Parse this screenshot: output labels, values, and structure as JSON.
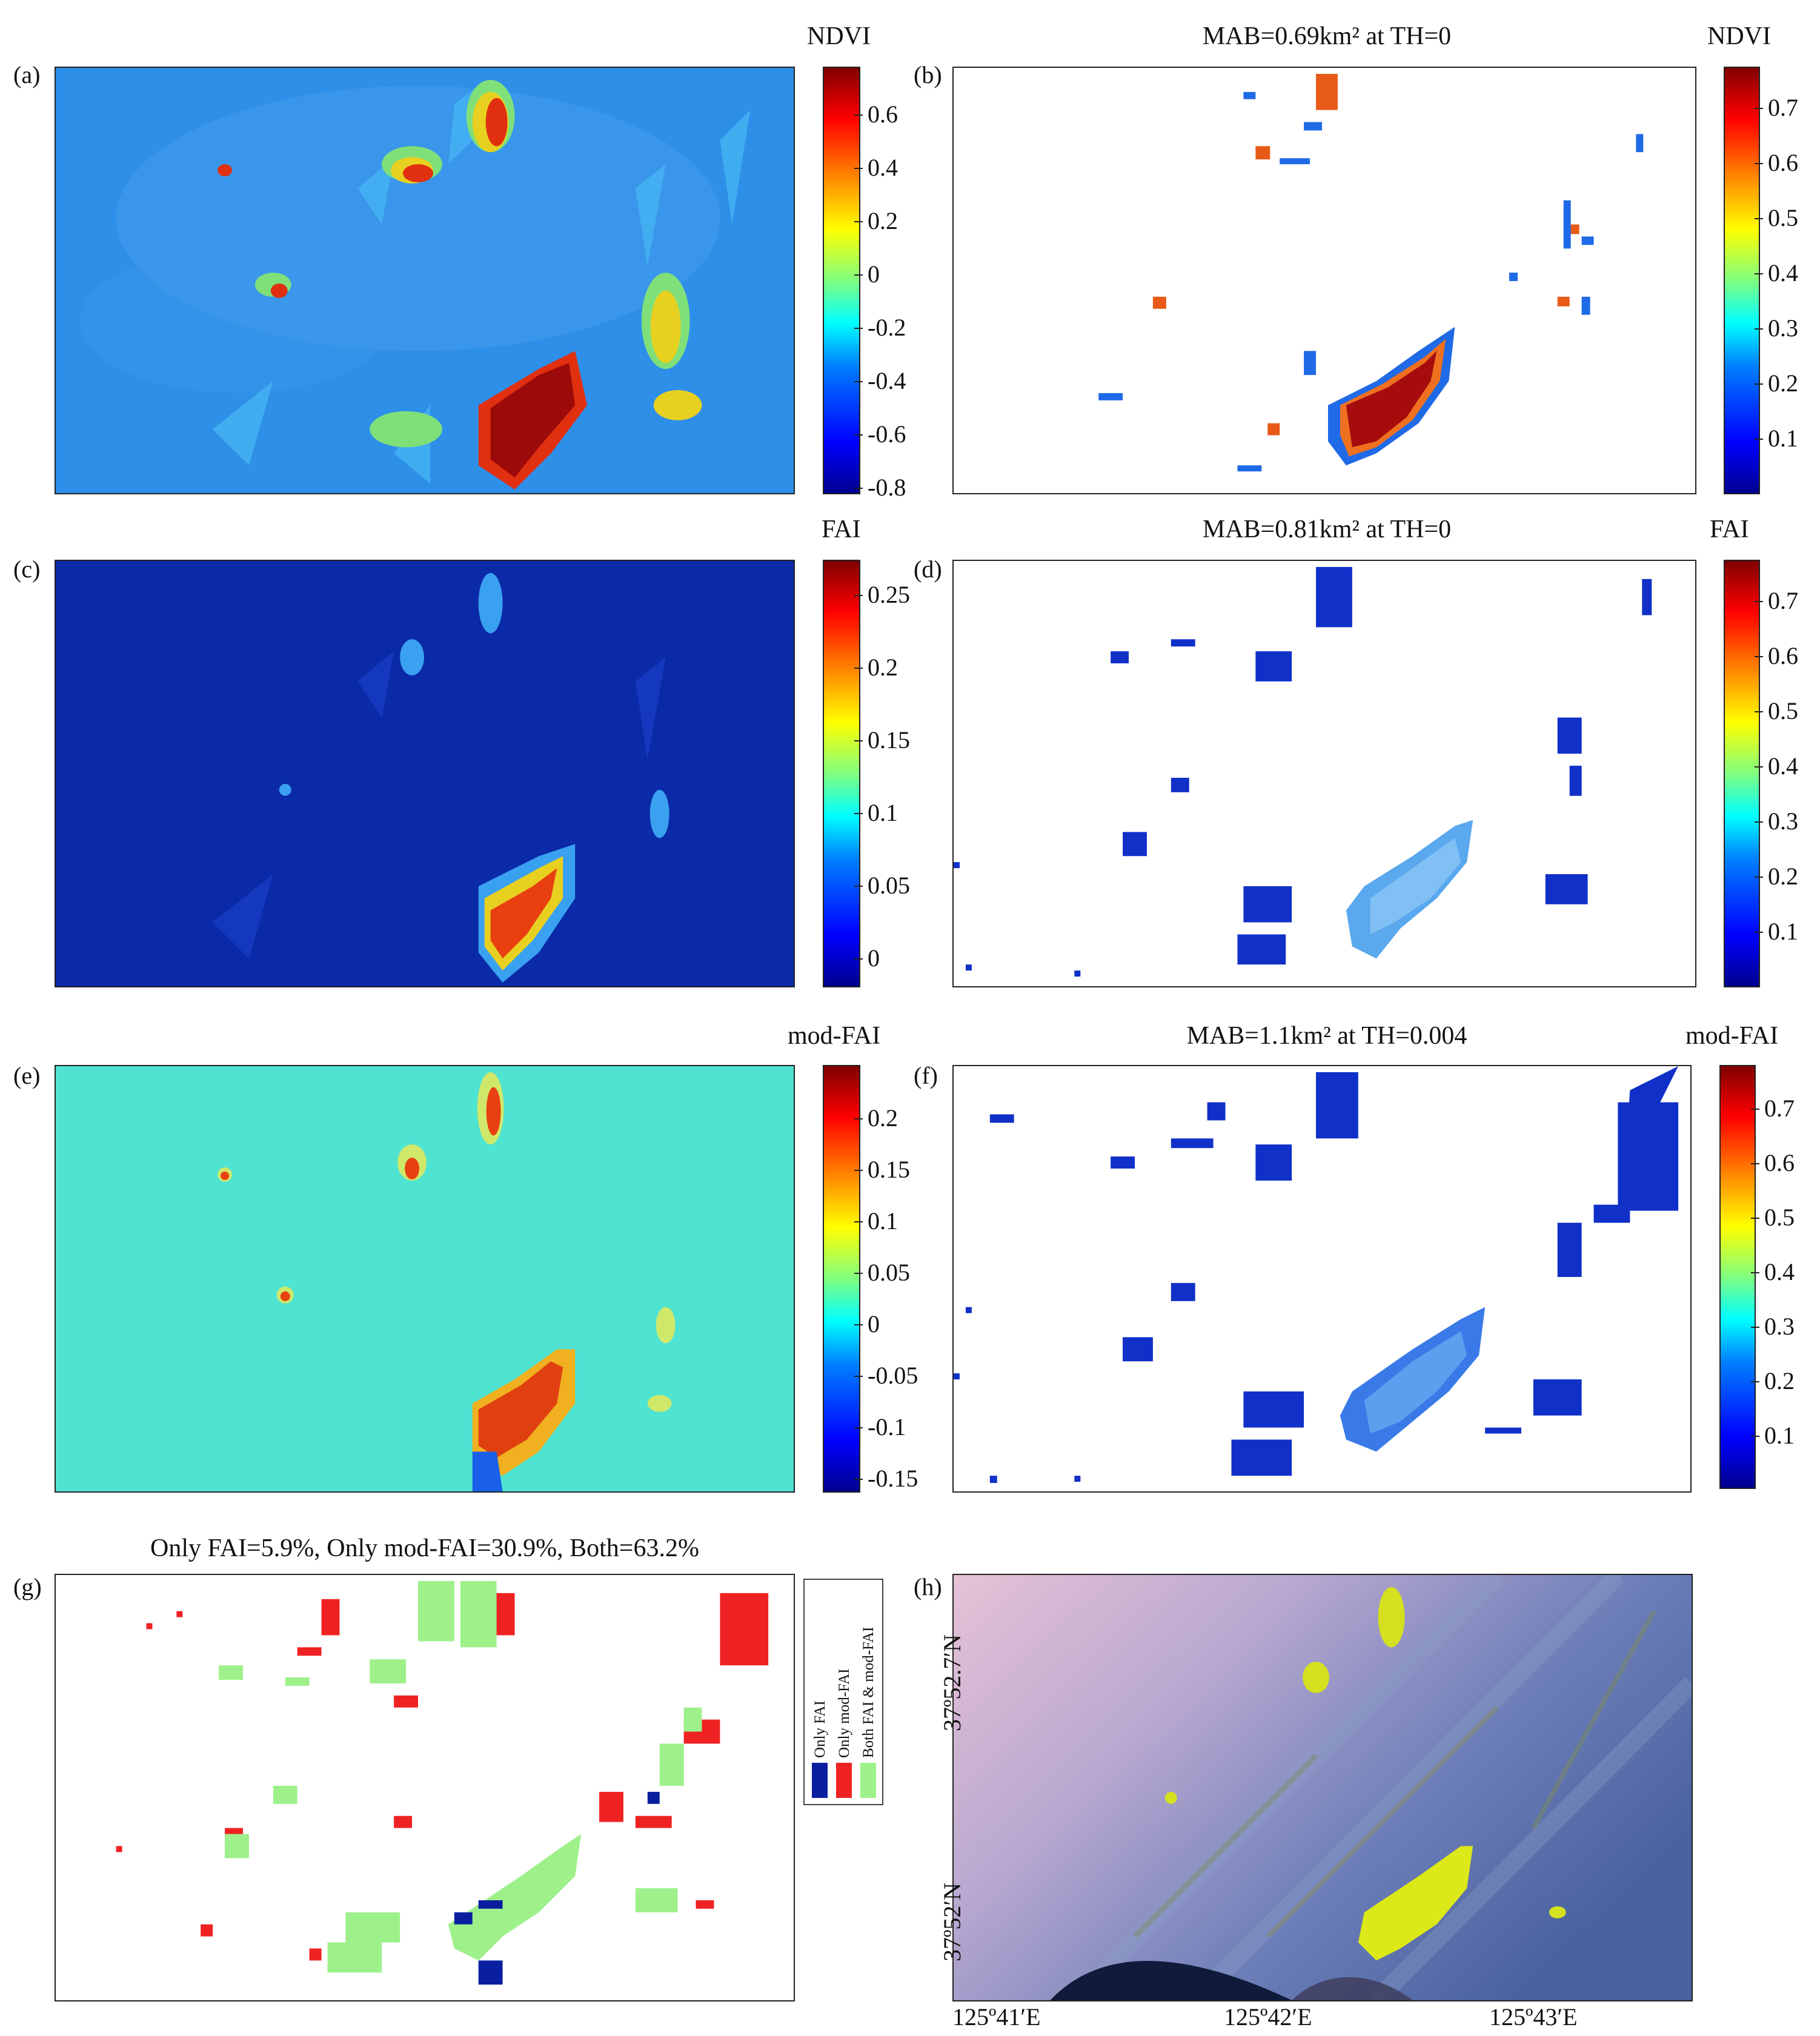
{
  "panels": {
    "a": {
      "label": "(a)",
      "colorbar_title": "NDVI",
      "ticks": [
        "0.6",
        "0.4",
        "0.2",
        "0",
        "-0.2",
        "-0.4",
        "-0.6",
        "-0.8"
      ]
    },
    "b": {
      "label": "(b)",
      "title": "MAB=0.69km² at TH=0",
      "colorbar_title": "NDVI",
      "ticks": [
        "0.7",
        "0.6",
        "0.5",
        "0.4",
        "0.3",
        "0.2",
        "0.1"
      ]
    },
    "c": {
      "label": "(c)",
      "colorbar_title": "FAI",
      "ticks": [
        "0.25",
        "0.2",
        "0.15",
        "0.1",
        "0.05",
        "0"
      ]
    },
    "d": {
      "label": "(d)",
      "title": "MAB=0.81km² at TH=0",
      "colorbar_title": "FAI",
      "ticks": [
        "0.7",
        "0.6",
        "0.5",
        "0.4",
        "0.3",
        "0.2",
        "0.1"
      ]
    },
    "e": {
      "label": "(e)",
      "colorbar_title": "mod-FAI",
      "ticks": [
        "0.2",
        "0.15",
        "0.1",
        "0.05",
        "0",
        "-0.05",
        "-0.1",
        "-0.15"
      ]
    },
    "f": {
      "label": "(f)",
      "title": "MAB=1.1km² at TH=0.004",
      "colorbar_title": "mod-FAI",
      "ticks": [
        "0.7",
        "0.6",
        "0.5",
        "0.4",
        "0.3",
        "0.2",
        "0.1"
      ]
    },
    "g": {
      "label": "(g)",
      "title": "Only FAI=5.9%, Only mod-FAI=30.9%, Both=63.2%",
      "legend": [
        {
          "label": "Only FAI",
          "color": "#0a1fa0"
        },
        {
          "label": "Only mod-FAI",
          "color": "#ee2222"
        },
        {
          "label": "Both FAI & mod-FAI",
          "color": "#9ef08a"
        }
      ]
    },
    "h": {
      "label": "(h)",
      "x_ticks": [
        "125º41′E",
        "125º42′E",
        "125º43′E"
      ],
      "y_ticks": [
        "37º52.7′N",
        "37º52′N"
      ]
    }
  },
  "colors": {
    "jet_low": "#00008f",
    "jet_high": "#800000",
    "ocean_ndvi": "#2e8fe8",
    "ocean_fai": "#0a2aa8",
    "ocean_modfai": "#4fe3d2"
  }
}
